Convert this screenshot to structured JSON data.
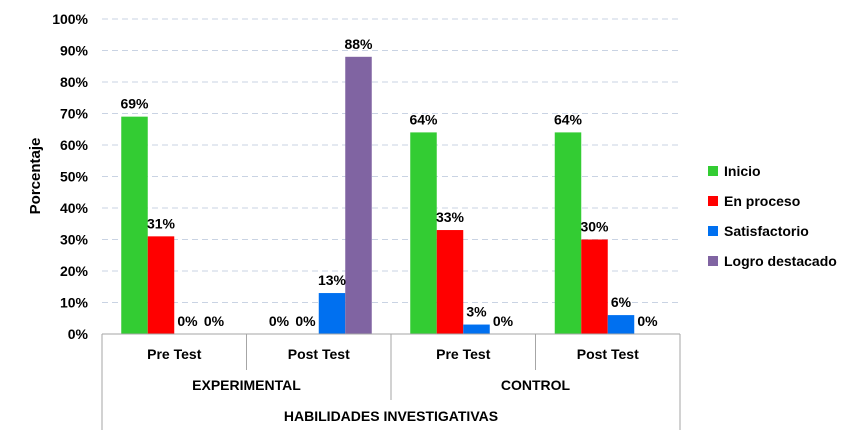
{
  "chart_data": {
    "type": "bar",
    "ylabel": "Porcentaje",
    "ylim": [
      0,
      100
    ],
    "y_ticks": [
      "0%",
      "10%",
      "20%",
      "30%",
      "40%",
      "50%",
      "60%",
      "70%",
      "80%",
      "90%",
      "100%"
    ],
    "grid": "horizontal-dashed",
    "legend_position": "right",
    "categories": [
      "Pre Test",
      "Post Test",
      "Pre Test",
      "Post Test"
    ],
    "groups": [
      {
        "name": "EXPERIMENTAL",
        "categories": [
          "Pre Test",
          "Post Test"
        ]
      },
      {
        "name": "CONTROL",
        "categories": [
          "Pre Test",
          "Post Test"
        ]
      }
    ],
    "outer_label": "HABILIDADES INVESTIGATIVAS",
    "series": [
      {
        "name": "Inicio",
        "color": "#33CC33",
        "values": [
          69,
          0,
          64,
          64
        ],
        "labels": [
          "69%",
          "0%",
          "64%",
          "64%"
        ]
      },
      {
        "name": "En proceso",
        "color": "#FF0000",
        "values": [
          31,
          0,
          33,
          30
        ],
        "labels": [
          "31%",
          "0%",
          "33%",
          "30%"
        ]
      },
      {
        "name": "Satisfactorio",
        "color": "#0070F0",
        "values": [
          0,
          13,
          3,
          6
        ],
        "labels": [
          "0%",
          "13%",
          "3%",
          "6%"
        ]
      },
      {
        "name": "Logro destacado",
        "color": "#8064A2",
        "values": [
          0,
          88,
          0,
          0
        ],
        "labels": [
          "0%",
          "88%",
          "0%",
          "0%"
        ]
      }
    ]
  }
}
